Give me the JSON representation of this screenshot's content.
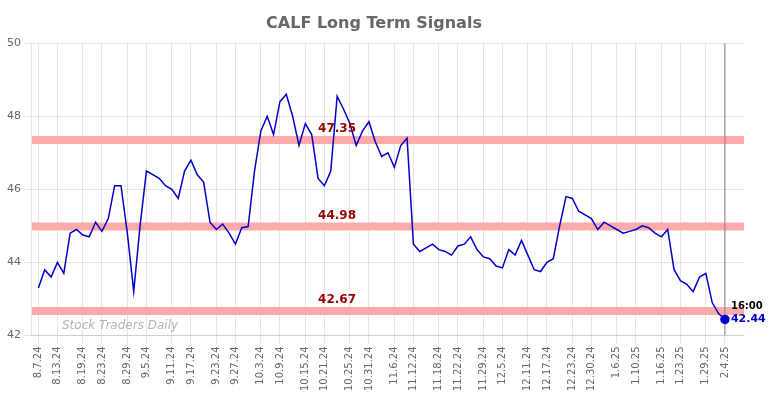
{
  "chart_data": {
    "type": "line",
    "title": "CALF Long Term Signals",
    "categories": [
      "8.7.24",
      null,
      null,
      "8.13.24",
      null,
      null,
      null,
      "8.19.24",
      null,
      null,
      "8.23.24",
      null,
      null,
      null,
      "8.29.24",
      null,
      null,
      "9.5.24",
      null,
      null,
      null,
      "9.11.24",
      null,
      null,
      "9.17.24",
      null,
      null,
      null,
      "9.23.24",
      null,
      null,
      "9.27.24",
      null,
      null,
      null,
      "10.3.24",
      null,
      null,
      "10.9.24",
      null,
      null,
      null,
      "10.15.24",
      null,
      null,
      "10.21.24",
      null,
      null,
      null,
      "10.25.24",
      null,
      null,
      "10.31.24",
      null,
      null,
      null,
      "11.6.24",
      null,
      null,
      "11.12.24",
      null,
      null,
      null,
      "11.18.24",
      null,
      null,
      "11.22.24",
      null,
      null,
      null,
      "11.29.24",
      null,
      null,
      "12.5.24",
      null,
      null,
      null,
      "12.11.24",
      null,
      null,
      "12.17.24",
      null,
      null,
      null,
      "12.23.24",
      null,
      null,
      "12.30.24",
      null,
      null,
      null,
      "1.6.25",
      null,
      null,
      "1.10.25",
      null,
      null,
      null,
      "1.16.25",
      null,
      null,
      "1.23.25",
      null,
      null,
      null,
      "1.29.25",
      null,
      null,
      "2.4.25"
    ],
    "values": [
      43.3,
      43.8,
      43.6,
      44.0,
      43.7,
      44.8,
      44.9,
      44.75,
      44.7,
      45.1,
      44.85,
      45.2,
      46.1,
      46.1,
      44.8,
      43.2,
      45.0,
      46.5,
      46.4,
      46.3,
      46.1,
      46.0,
      45.75,
      46.5,
      46.8,
      46.4,
      46.2,
      45.1,
      44.9,
      45.05,
      44.8,
      44.5,
      44.95,
      44.98,
      46.5,
      47.6,
      48.0,
      47.5,
      48.4,
      48.6,
      48.0,
      47.2,
      47.8,
      47.5,
      46.3,
      46.1,
      46.5,
      48.55,
      48.2,
      47.8,
      47.2,
      47.6,
      47.85,
      47.3,
      46.9,
      47.0,
      46.6,
      47.2,
      47.4,
      44.5,
      44.3,
      44.4,
      44.5,
      44.35,
      44.3,
      44.2,
      44.45,
      44.5,
      44.7,
      44.35,
      44.15,
      44.1,
      43.9,
      43.85,
      44.35,
      44.2,
      44.6,
      44.2,
      43.8,
      43.75,
      44.0,
      44.1,
      45.0,
      45.8,
      45.75,
      45.4,
      45.3,
      45.2,
      44.9,
      45.1,
      45.0,
      44.9,
      44.8,
      44.85,
      44.9,
      45.0,
      44.95,
      44.8,
      44.7,
      44.9,
      43.8,
      43.5,
      43.4,
      43.2,
      43.6,
      43.7,
      42.9,
      42.6,
      42.44
    ],
    "color": "#0000cc",
    "ylim": [
      42,
      50
    ],
    "yticks": [
      42,
      44,
      46,
      48,
      50
    ],
    "grid": true,
    "hlines": [
      {
        "y": 42.67,
        "color": "#ffaaaa"
      },
      {
        "y": 44.98,
        "color": "#ffaaaa"
      },
      {
        "y": 47.35,
        "color": "#ffaaaa"
      }
    ],
    "annotations": [
      {
        "text": "47.35",
        "y": 47.35,
        "color": "#990000"
      },
      {
        "text": "44.98",
        "y": 44.98,
        "color": "#990000"
      },
      {
        "text": "42.67",
        "y": 42.67,
        "color": "#990000"
      }
    ],
    "end_annotations": [
      {
        "text": "16:00",
        "color": "#000000"
      },
      {
        "text": "42.44",
        "y": 42.44,
        "color": "#0000cc"
      }
    ],
    "watermark": "Stock Traders Daily"
  }
}
